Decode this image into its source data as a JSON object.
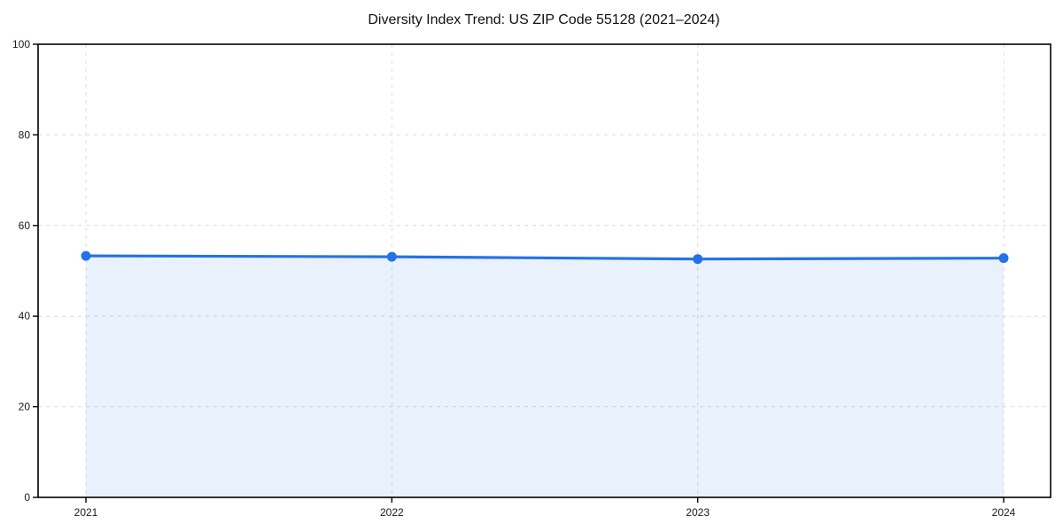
{
  "chart_data": {
    "type": "line",
    "title": "Diversity Index Trend: US ZIP Code 55128 (2021–2024)",
    "categories": [
      "2021",
      "2022",
      "2023",
      "2024"
    ],
    "series": [
      {
        "name": "Diversity Index",
        "values": [
          53.3,
          53.1,
          52.6,
          52.8
        ]
      }
    ],
    "xlabel": "",
    "ylabel": "",
    "ylim": [
      0,
      100
    ],
    "yticks": [
      0,
      20,
      40,
      60,
      80,
      100
    ],
    "grid": "dashed-both-axes",
    "legend": "none",
    "area_fill": true,
    "marker": "circle",
    "colors": {
      "line": "#2372e8",
      "marker": "#2372e8",
      "fill": "rgba(35,114,232,0.10)",
      "grid": "#dcdcdc",
      "spine": "#000000",
      "text": "#1a1a1a",
      "background": "#ffffff"
    }
  }
}
